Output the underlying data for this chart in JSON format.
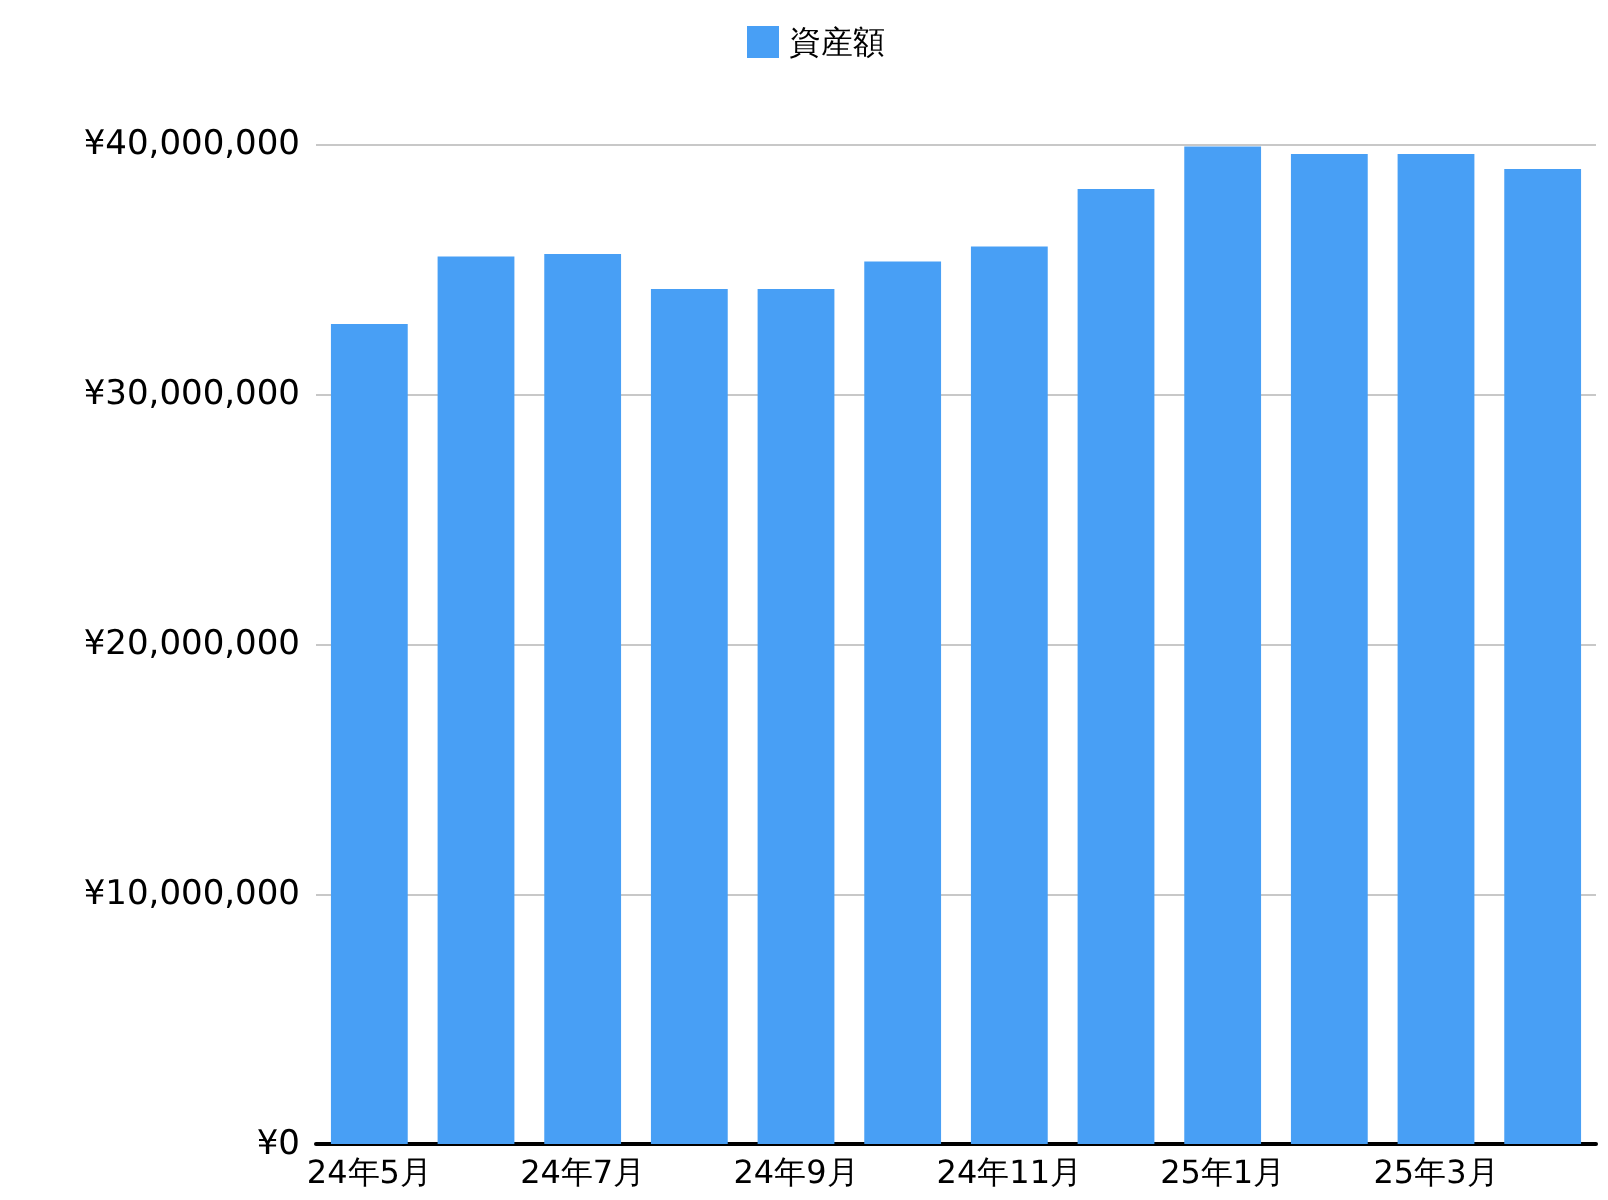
{
  "chart_data": {
    "type": "bar",
    "categories": [
      "24年5月",
      null,
      "24年7月",
      null,
      "24年9月",
      null,
      "24年11月",
      null,
      "25年1月",
      null,
      "25年3月",
      null
    ],
    "series": [
      {
        "name": "資産額",
        "color": "#489ff5",
        "values": [
          32800000,
          35500000,
          35600000,
          34200000,
          34200000,
          35300000,
          35900000,
          38200000,
          39900000,
          39600000,
          39600000,
          39000000
        ]
      }
    ],
    "ylim": [
      0,
      40000000
    ],
    "yticks": [
      {
        "value": 0,
        "label": "¥0"
      },
      {
        "value": 10000000,
        "label": "¥10,000,000"
      },
      {
        "value": 20000000,
        "label": "¥20,000,000"
      },
      {
        "value": 30000000,
        "label": "¥30,000,000"
      },
      {
        "value": 40000000,
        "label": "¥40,000,000"
      }
    ],
    "grid": "y",
    "legend": "top"
  }
}
